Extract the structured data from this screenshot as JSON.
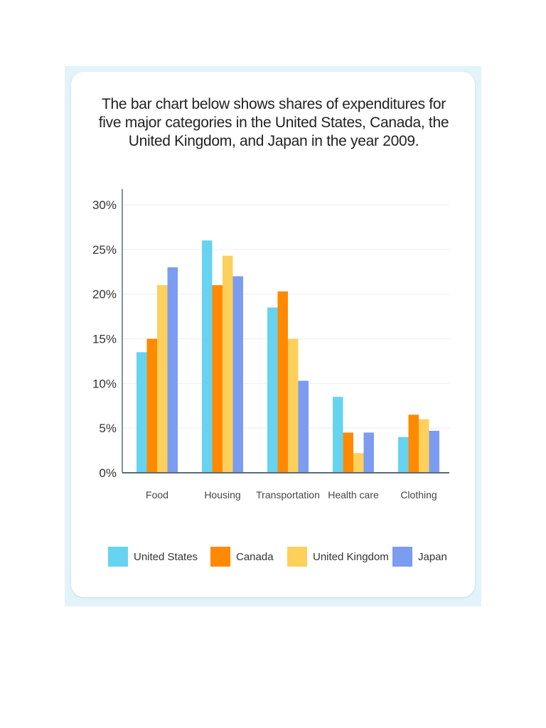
{
  "title": "The bar chart below shows shares of expenditures for five major categories in the United States, Canada, the United Kingdom, and Japan in the year 2009.",
  "colors": {
    "frame_bg": "#e3f3fa",
    "card_bg": "#ffffff",
    "axis": "#5b6b7a",
    "grid": "#eeeeee"
  },
  "chart_data": {
    "type": "bar",
    "title": "The bar chart below shows shares of expenditures for five major categories in the United States, Canada, the United Kingdom, and Japan in the year 2009.",
    "categories": [
      "Food",
      "Housing",
      "Transportation",
      "Health care",
      "Clothing"
    ],
    "yticks": [
      "0%",
      "5%",
      "10%",
      "15%",
      "20%",
      "25%",
      "30%"
    ],
    "ylim": [
      0,
      30
    ],
    "grid": true,
    "legend_position": "bottom",
    "series": [
      {
        "name": "United States",
        "color": "#66d3f1",
        "values": [
          13.5,
          26,
          18.5,
          8.5,
          4
        ]
      },
      {
        "name": "Canada",
        "color": "#ff8a00",
        "values": [
          15,
          21,
          20.3,
          4.5,
          6.5
        ]
      },
      {
        "name": "United Kingdom",
        "color": "#fcd05a",
        "values": [
          21,
          24.3,
          15,
          2.2,
          6
        ]
      },
      {
        "name": "Japan",
        "color": "#7b9cf0",
        "values": [
          23,
          22,
          10.3,
          4.5,
          4.7
        ]
      }
    ]
  }
}
